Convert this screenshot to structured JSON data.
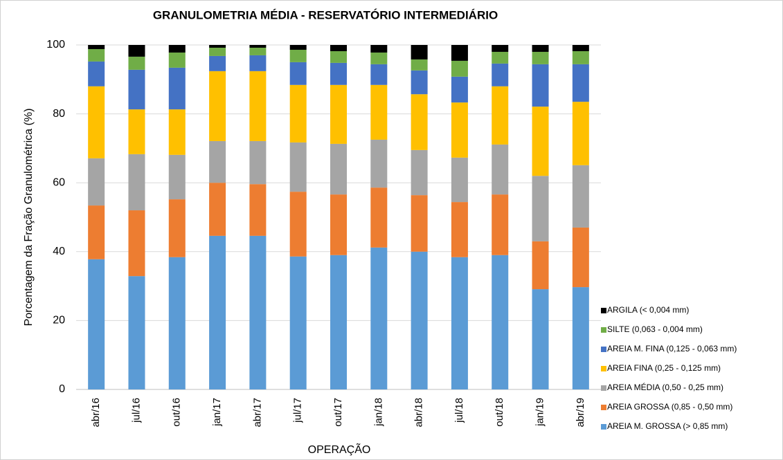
{
  "chart_data": {
    "type": "stacked_bar",
    "title": "GRANULOMETRIA  MÉDIA - RESERVATÓRIO INTERMEDIÁRIO",
    "x_label": "OPERAÇÃO",
    "y_label": "Porcentagem da Fração Granulométrica (%)",
    "categories": [
      "abr/16",
      "jul/16",
      "out/16",
      "jan/17",
      "abr/17",
      "jul/17",
      "out/17",
      "jan/18",
      "abr/18",
      "jul/18",
      "out/18",
      "jan/19",
      "abr/19"
    ],
    "series": [
      {
        "name": "AREIA M. GROSSA (> 0,85 mm)",
        "color": "#5b9bd5",
        "values": [
          37.8,
          32.9,
          38.4,
          44.6,
          44.6,
          38.6,
          39.0,
          41.2,
          40.0,
          38.4,
          39.0,
          29.1,
          29.7
        ]
      },
      {
        "name": "AREIA GROSSA (0,85 - 0,50 mm)",
        "color": "#ed7d31",
        "values": [
          15.6,
          19.1,
          16.8,
          15.4,
          15.0,
          18.8,
          17.6,
          17.4,
          16.4,
          16.0,
          17.6,
          13.9,
          17.3
        ]
      },
      {
        "name": "AREIA MÉDIA (0,50 - 0,25 mm)",
        "color": "#a5a5a5",
        "values": [
          13.7,
          16.3,
          12.9,
          12.1,
          12.5,
          14.3,
          14.7,
          13.9,
          13.1,
          12.9,
          14.5,
          19.0,
          18.1
        ]
      },
      {
        "name": "AREIA FINA (0,25 - 0,125 mm)",
        "color": "#ffc000",
        "values": [
          20.9,
          13.0,
          13.2,
          20.3,
          20.3,
          16.7,
          17.1,
          15.9,
          16.2,
          16.0,
          16.9,
          20.1,
          18.4
        ]
      },
      {
        "name": "AREIA M. FINA (0,125 - 0,063 mm)",
        "color": "#4472c4",
        "values": [
          7.2,
          11.5,
          12.1,
          4.4,
          4.6,
          6.6,
          6.4,
          6.0,
          6.9,
          7.5,
          6.6,
          12.3,
          10.9
        ]
      },
      {
        "name": "SILTE (0,063 -  0,004 mm)",
        "color": "#70ad47",
        "values": [
          3.6,
          3.8,
          4.4,
          2.4,
          2.2,
          3.6,
          3.4,
          3.4,
          3.2,
          4.6,
          3.4,
          3.6,
          3.8
        ]
      },
      {
        "name": "ARGILA (< 0,004 mm)",
        "color": "#000000",
        "values": [
          1.2,
          3.4,
          2.2,
          0.8,
          0.8,
          1.4,
          1.8,
          2.2,
          4.2,
          4.6,
          2.0,
          2.0,
          1.8
        ]
      }
    ],
    "ylim": [
      0,
      100
    ],
    "yticks": [
      0,
      20,
      40,
      60,
      80,
      100
    ],
    "grid": true
  }
}
